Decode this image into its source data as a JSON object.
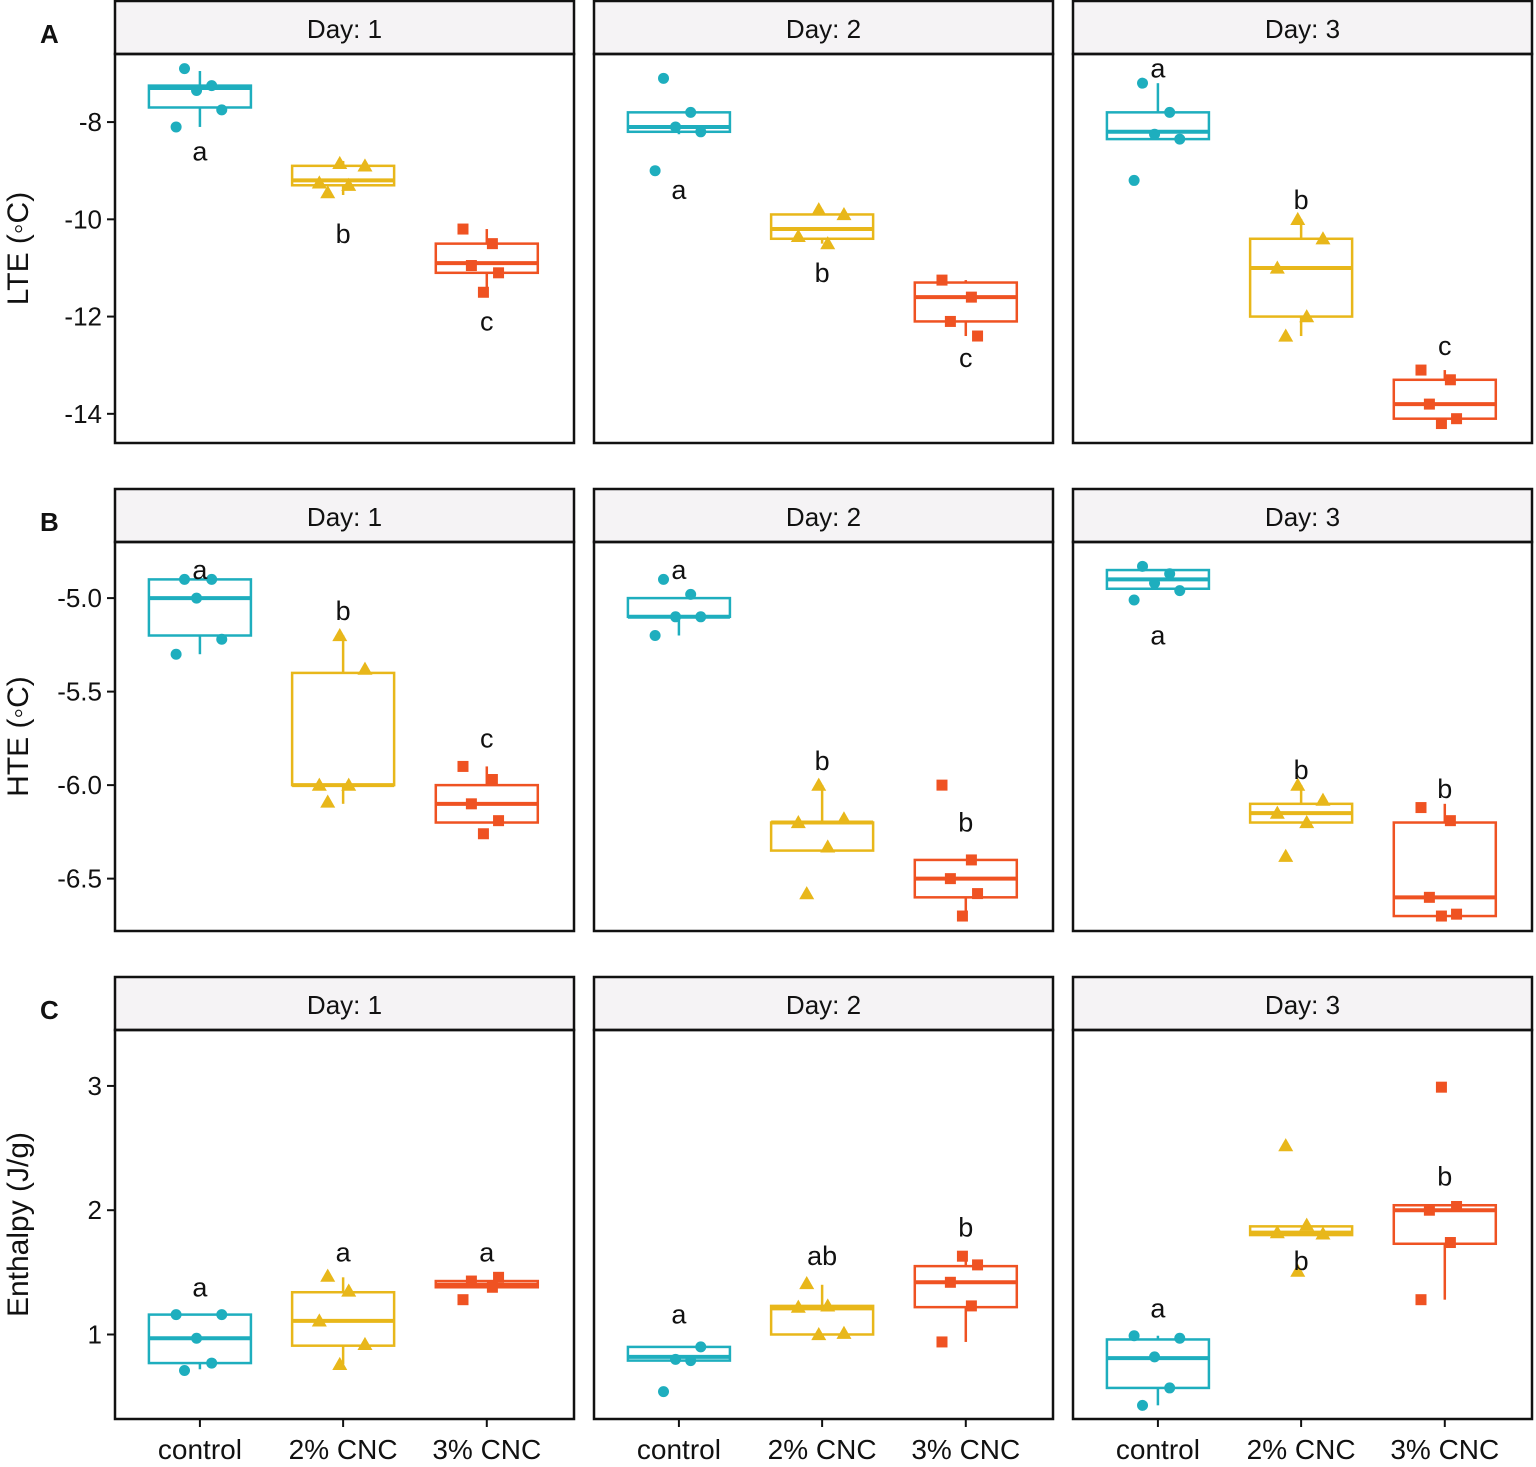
{
  "colors": {
    "control": "#1eaebe",
    "cnc2": "#e8b71a",
    "cnc3": "#ef5222",
    "frame": "#111111",
    "strip_fill": "#f5f3f5"
  },
  "chart_data": {
    "type": "box",
    "categories": [
      "control",
      "2% CNC",
      "3% CNC"
    ],
    "marker_shapes": [
      "circle",
      "triangle",
      "square"
    ],
    "facets": [
      "Day: 1",
      "Day: 2",
      "Day: 3"
    ],
    "rows": [
      {
        "tag": "A",
        "ylabel": "LTE (◦C)",
        "ylim": [
          -14.6,
          -6.6
        ],
        "yticks": [
          -8,
          -10,
          -12,
          -14
        ],
        "ytick_labels": [
          "-8",
          "-10",
          "-12",
          "-14"
        ],
        "panels": [
          {
            "facet": "Day: 1",
            "groups": [
              {
                "box": {
                  "min": -8.1,
                  "q1": -7.7,
                  "median": -7.3,
                  "q3": -7.25,
                  "max": -6.95
                },
                "points": [
                  -6.9,
                  -7.25,
                  -7.35,
                  -7.75,
                  -8.1
                ],
                "letter": "a",
                "letter_y": -8.6
              },
              {
                "box": {
                  "min": -9.5,
                  "q1": -9.3,
                  "median": -9.2,
                  "q3": -8.9,
                  "max": -8.8
                },
                "points": [
                  -8.85,
                  -8.9,
                  -9.25,
                  -9.3,
                  -9.45
                ],
                "letter": "b",
                "letter_y": -10.3
              },
              {
                "box": {
                  "min": -11.5,
                  "q1": -11.1,
                  "median": -10.9,
                  "q3": -10.5,
                  "max": -10.2
                },
                "points": [
                  -10.2,
                  -10.5,
                  -10.95,
                  -11.1,
                  -11.5
                ],
                "letter": "c",
                "letter_y": -12.1
              }
            ]
          },
          {
            "facet": "Day: 2",
            "groups": [
              {
                "box": {
                  "min": -8.25,
                  "q1": -8.2,
                  "median": -8.1,
                  "q3": -7.8,
                  "max": -7.8
                },
                "points": [
                  -7.1,
                  -7.8,
                  -8.1,
                  -8.2,
                  -9.0
                ],
                "letter": "a",
                "letter_y": -9.4
              },
              {
                "box": {
                  "min": -10.5,
                  "q1": -10.4,
                  "median": -10.2,
                  "q3": -9.9,
                  "max": -9.8
                },
                "points": [
                  -9.8,
                  -9.9,
                  -10.35,
                  -10.5
                ],
                "letter": "b",
                "letter_y": -11.1
              },
              {
                "box": {
                  "min": -12.4,
                  "q1": -12.1,
                  "median": -11.6,
                  "q3": -11.3,
                  "max": -11.25
                },
                "points": [
                  -11.25,
                  -11.6,
                  -12.1,
                  -12.4
                ],
                "letter": "c",
                "letter_y": -12.85
              }
            ]
          },
          {
            "facet": "Day: 3",
            "groups": [
              {
                "box": {
                  "min": -8.35,
                  "q1": -8.35,
                  "median": -8.2,
                  "q3": -7.8,
                  "max": -7.2
                },
                "points": [
                  -7.2,
                  -7.8,
                  -8.25,
                  -8.35,
                  -9.2
                ],
                "letter": "a",
                "letter_y": -6.9
              },
              {
                "box": {
                  "min": -12.4,
                  "q1": -12.0,
                  "median": -11.0,
                  "q3": -10.4,
                  "max": -10.0
                },
                "points": [
                  -10.0,
                  -10.4,
                  -11.0,
                  -12.0,
                  -12.4
                ],
                "letter": "b",
                "letter_y": -9.6
              },
              {
                "box": {
                  "min": -14.2,
                  "q1": -14.1,
                  "median": -13.8,
                  "q3": -13.3,
                  "max": -13.1
                },
                "points": [
                  -13.1,
                  -13.3,
                  -13.8,
                  -14.1,
                  -14.2
                ],
                "letter": "c",
                "letter_y": -12.6
              }
            ]
          }
        ]
      },
      {
        "tag": "B",
        "ylabel": "HTE (◦C)",
        "ylim": [
          -6.78,
          -4.7
        ],
        "yticks": [
          -5.0,
          -5.5,
          -6.0,
          -6.5
        ],
        "ytick_labels": [
          "-5.0",
          "-5.5",
          "-6.0",
          "-6.5"
        ],
        "panels": [
          {
            "facet": "Day: 1",
            "groups": [
              {
                "box": {
                  "min": -5.3,
                  "q1": -5.2,
                  "median": -5.0,
                  "q3": -4.9,
                  "max": -4.9
                },
                "points": [
                  -4.9,
                  -4.9,
                  -5.0,
                  -5.22,
                  -5.3
                ],
                "letter": "a",
                "letter_y": -4.85
              },
              {
                "box": {
                  "min": -6.1,
                  "q1": -6.0,
                  "median": -6.0,
                  "q3": -5.4,
                  "max": -5.2
                },
                "points": [
                  -5.2,
                  -5.38,
                  -6.0,
                  -6.0,
                  -6.09
                ],
                "letter": "b",
                "letter_y": -5.07
              },
              {
                "box": {
                  "min": -6.2,
                  "q1": -6.2,
                  "median": -6.1,
                  "q3": -6.0,
                  "max": -5.9
                },
                "points": [
                  -5.9,
                  -5.97,
                  -6.1,
                  -6.19,
                  -6.26
                ],
                "letter": "c",
                "letter_y": -5.75
              }
            ]
          },
          {
            "facet": "Day: 2",
            "groups": [
              {
                "box": {
                  "min": -5.2,
                  "q1": -5.1,
                  "median": -5.1,
                  "q3": -5.0,
                  "max": -5.0
                },
                "points": [
                  -4.9,
                  -4.98,
                  -5.1,
                  -5.1,
                  -5.2
                ],
                "letter": "a",
                "letter_y": -4.85
              },
              {
                "box": {
                  "min": -6.35,
                  "q1": -6.35,
                  "median": -6.2,
                  "q3": -6.2,
                  "max": -6.0
                },
                "points": [
                  -6.0,
                  -6.18,
                  -6.2,
                  -6.33,
                  -6.58
                ],
                "letter": "b",
                "letter_y": -5.87
              },
              {
                "box": {
                  "min": -6.7,
                  "q1": -6.6,
                  "median": -6.5,
                  "q3": -6.4,
                  "max": -6.4
                },
                "points": [
                  -6.0,
                  -6.4,
                  -6.5,
                  -6.58,
                  -6.7
                ],
                "letter": "b",
                "letter_y": -6.2
              }
            ]
          },
          {
            "facet": "Day: 3",
            "groups": [
              {
                "box": {
                  "min": -4.95,
                  "q1": -4.95,
                  "median": -4.9,
                  "q3": -4.85,
                  "max": -4.85
                },
                "points": [
                  -4.83,
                  -4.87,
                  -4.92,
                  -4.96,
                  -5.01
                ],
                "letter": "a",
                "letter_y": -5.2
              },
              {
                "box": {
                  "min": -6.2,
                  "q1": -6.2,
                  "median": -6.15,
                  "q3": -6.1,
                  "max": -6.0
                },
                "points": [
                  -6.0,
                  -6.08,
                  -6.15,
                  -6.2,
                  -6.38
                ],
                "letter": "b",
                "letter_y": -5.92
              },
              {
                "box": {
                  "min": -6.7,
                  "q1": -6.7,
                  "median": -6.6,
                  "q3": -6.2,
                  "max": -6.1
                },
                "points": [
                  -6.12,
                  -6.19,
                  -6.6,
                  -6.69,
                  -6.7
                ],
                "letter": "b",
                "letter_y": -6.02
              }
            ]
          }
        ]
      },
      {
        "tag": "C",
        "ylabel": "Enthalpy (J/g)",
        "ylim": [
          0.32,
          3.45
        ],
        "yticks": [
          3,
          2,
          1
        ],
        "ytick_labels": [
          "3",
          "2",
          "1"
        ],
        "panels": [
          {
            "facet": "Day: 1",
            "groups": [
              {
                "box": {
                  "min": 0.72,
                  "q1": 0.77,
                  "median": 0.97,
                  "q3": 1.16,
                  "max": 1.16
                },
                "points": [
                  0.71,
                  0.77,
                  0.97,
                  1.16,
                  1.16
                ],
                "letter": "a",
                "letter_y": 1.38
              },
              {
                "box": {
                  "min": 0.76,
                  "q1": 0.91,
                  "median": 1.11,
                  "q3": 1.34,
                  "max": 1.46
                },
                "points": [
                  0.76,
                  0.92,
                  1.11,
                  1.35,
                  1.47
                ],
                "letter": "a",
                "letter_y": 1.66
              },
              {
                "box": {
                  "min": 1.38,
                  "q1": 1.38,
                  "median": 1.4,
                  "q3": 1.43,
                  "max": 1.43
                },
                "points": [
                  1.28,
                  1.38,
                  1.43,
                  1.46
                ],
                "letter": "a",
                "letter_y": 1.66
              }
            ]
          },
          {
            "facet": "Day: 2",
            "groups": [
              {
                "box": {
                  "min": 0.79,
                  "q1": 0.79,
                  "median": 0.82,
                  "q3": 0.9,
                  "max": 0.9
                },
                "points": [
                  0.54,
                  0.79,
                  0.8,
                  0.9
                ],
                "letter": "a",
                "letter_y": 1.16
              },
              {
                "box": {
                  "min": 1.0,
                  "q1": 1.0,
                  "median": 1.21,
                  "q3": 1.23,
                  "max": 1.4
                },
                "points": [
                  1.0,
                  1.01,
                  1.22,
                  1.23,
                  1.41
                ],
                "letter": "ab",
                "letter_y": 1.63
              },
              {
                "box": {
                  "min": 0.94,
                  "q1": 1.22,
                  "median": 1.42,
                  "q3": 1.55,
                  "max": 1.62
                },
                "points": [
                  0.94,
                  1.23,
                  1.42,
                  1.56,
                  1.63
                ],
                "letter": "b",
                "letter_y": 1.86
              }
            ]
          },
          {
            "facet": "Day: 3",
            "groups": [
              {
                "box": {
                  "min": 0.43,
                  "q1": 0.57,
                  "median": 0.81,
                  "q3": 0.96,
                  "max": 0.99
                },
                "points": [
                  0.43,
                  0.57,
                  0.82,
                  0.97,
                  0.99
                ],
                "letter": "a",
                "letter_y": 1.21
              },
              {
                "box": {
                  "min": 1.8,
                  "q1": 1.8,
                  "median": 1.82,
                  "q3": 1.87,
                  "max": 1.87
                },
                "points": [
                  1.51,
                  1.81,
                  1.82,
                  1.88,
                  2.52
                ],
                "letter": "b",
                "letter_y": 1.59
              },
              {
                "box": {
                  "min": 1.28,
                  "q1": 1.73,
                  "median": 2.0,
                  "q3": 2.04,
                  "max": 2.04
                },
                "points": [
                  1.28,
                  1.74,
                  2.0,
                  2.03,
                  2.99
                ],
                "letter": "b",
                "letter_y": 2.27
              }
            ]
          }
        ]
      }
    ]
  }
}
